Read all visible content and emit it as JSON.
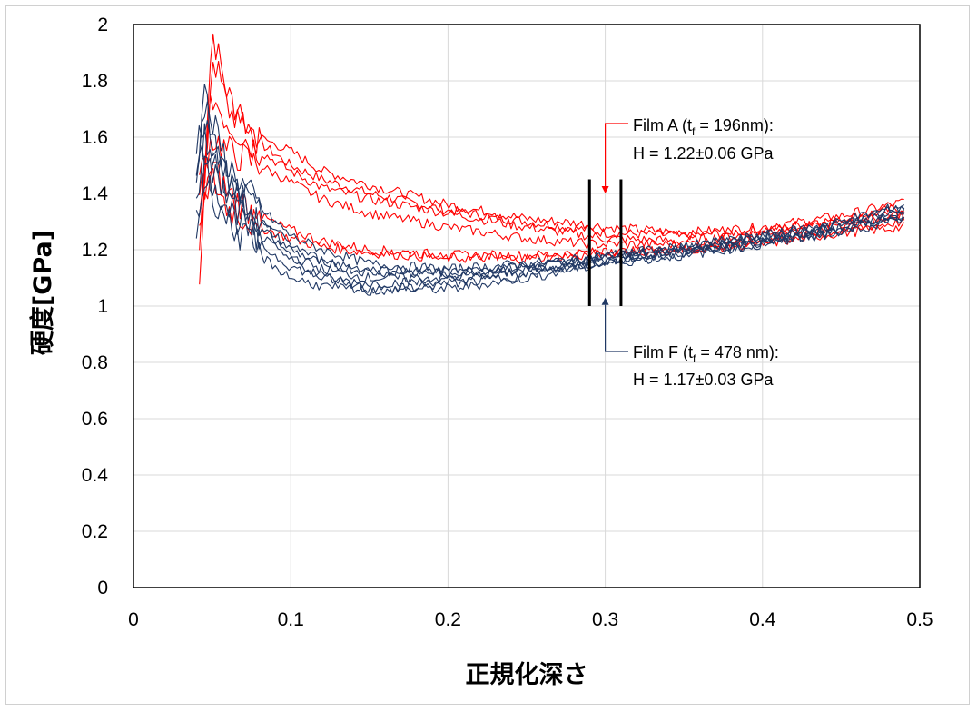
{
  "chart_data": {
    "type": "line",
    "xlabel": "正規化深さ",
    "ylabel": "硬度[GPa]",
    "xlim": [
      0,
      0.5
    ],
    "ylim": [
      0,
      2
    ],
    "xticks": [
      "0",
      "0.1",
      "0.2",
      "0.3",
      "0.4",
      "0.5"
    ],
    "yticks": [
      "0",
      "0.2",
      "0.4",
      "0.6",
      "0.8",
      "1",
      "1.2",
      "1.4",
      "1.6",
      "1.8",
      "2"
    ],
    "grid": true,
    "legend": "none",
    "marker_lines_x": [
      0.29,
      0.31
    ],
    "marker_lines_y": [
      1.0,
      1.45
    ],
    "series": [
      {
        "group": "Film A",
        "color": "#ff0000",
        "curves": [
          {
            "x": [
              0.042,
              0.05,
              0.06,
              0.08,
              0.1,
              0.12,
              0.15,
              0.2,
              0.25,
              0.29,
              0.3,
              0.35,
              0.4,
              0.45,
              0.49
            ],
            "y": [
              1.2,
              1.98,
              1.75,
              1.58,
              1.5,
              1.45,
              1.4,
              1.34,
              1.3,
              1.27,
              1.26,
              1.25,
              1.27,
              1.31,
              1.35
            ]
          },
          {
            "x": [
              0.042,
              0.05,
              0.06,
              0.08,
              0.1,
              0.12,
              0.15,
              0.2,
              0.25,
              0.29,
              0.3,
              0.35,
              0.4,
              0.45,
              0.49
            ],
            "y": [
              1.05,
              1.9,
              1.7,
              1.6,
              1.55,
              1.48,
              1.43,
              1.36,
              1.31,
              1.29,
              1.28,
              1.26,
              1.28,
              1.32,
              1.37
            ]
          },
          {
            "x": [
              0.042,
              0.05,
              0.06,
              0.08,
              0.1,
              0.12,
              0.15,
              0.2,
              0.25,
              0.29,
              0.3,
              0.35,
              0.4,
              0.45,
              0.49
            ],
            "y": [
              1.3,
              1.75,
              1.65,
              1.55,
              1.48,
              1.42,
              1.38,
              1.33,
              1.28,
              1.25,
              1.24,
              1.23,
              1.26,
              1.3,
              1.32
            ]
          },
          {
            "x": [
              0.042,
              0.05,
              0.06,
              0.08,
              0.1,
              0.12,
              0.15,
              0.2,
              0.25,
              0.29,
              0.3,
              0.35,
              0.4,
              0.45,
              0.49
            ],
            "y": [
              1.45,
              1.6,
              1.55,
              1.5,
              1.44,
              1.38,
              1.33,
              1.28,
              1.24,
              1.22,
              1.22,
              1.22,
              1.25,
              1.29,
              1.33
            ]
          },
          {
            "x": [
              0.042,
              0.05,
              0.06,
              0.08,
              0.1,
              0.12,
              0.15,
              0.2,
              0.25,
              0.29,
              0.3,
              0.35,
              0.4,
              0.45,
              0.49
            ],
            "y": [
              1.25,
              1.5,
              1.4,
              1.32,
              1.27,
              1.23,
              1.2,
              1.18,
              1.18,
              1.19,
              1.19,
              1.2,
              1.23,
              1.27,
              1.3
            ]
          },
          {
            "x": [
              0.042,
              0.05,
              0.06,
              0.08,
              0.1,
              0.12,
              0.15,
              0.2,
              0.25,
              0.29,
              0.3,
              0.35,
              0.4,
              0.45,
              0.49
            ],
            "y": [
              1.4,
              1.45,
              1.35,
              1.28,
              1.24,
              1.21,
              1.19,
              1.17,
              1.17,
              1.18,
              1.19,
              1.2,
              1.22,
              1.26,
              1.28
            ]
          }
        ]
      },
      {
        "group": "Film F",
        "color": "#203864",
        "curves": [
          {
            "x": [
              0.04,
              0.045,
              0.05,
              0.06,
              0.08,
              0.1,
              0.12,
              0.15,
              0.2,
              0.25,
              0.29,
              0.3,
              0.35,
              0.4,
              0.45,
              0.49
            ],
            "y": [
              1.4,
              1.78,
              1.6,
              1.45,
              1.3,
              1.2,
              1.15,
              1.12,
              1.12,
              1.14,
              1.16,
              1.17,
              1.2,
              1.24,
              1.29,
              1.34
            ]
          },
          {
            "x": [
              0.04,
              0.045,
              0.05,
              0.06,
              0.08,
              0.1,
              0.12,
              0.15,
              0.2,
              0.25,
              0.29,
              0.3,
              0.35,
              0.4,
              0.45,
              0.49
            ],
            "y": [
              1.5,
              1.7,
              1.65,
              1.5,
              1.35,
              1.25,
              1.2,
              1.15,
              1.13,
              1.15,
              1.17,
              1.18,
              1.21,
              1.25,
              1.3,
              1.36
            ]
          },
          {
            "x": [
              0.04,
              0.045,
              0.05,
              0.06,
              0.08,
              0.1,
              0.12,
              0.15,
              0.2,
              0.25,
              0.29,
              0.3,
              0.35,
              0.4,
              0.45,
              0.49
            ],
            "y": [
              1.35,
              1.6,
              1.55,
              1.42,
              1.28,
              1.18,
              1.13,
              1.1,
              1.1,
              1.13,
              1.16,
              1.17,
              1.2,
              1.23,
              1.28,
              1.33
            ]
          },
          {
            "x": [
              0.04,
              0.045,
              0.05,
              0.06,
              0.08,
              0.1,
              0.12,
              0.15,
              0.2,
              0.25,
              0.29,
              0.3,
              0.35,
              0.4,
              0.45,
              0.49
            ],
            "y": [
              1.3,
              1.5,
              1.45,
              1.35,
              1.22,
              1.14,
              1.1,
              1.08,
              1.09,
              1.12,
              1.15,
              1.16,
              1.19,
              1.23,
              1.27,
              1.32
            ]
          },
          {
            "x": [
              0.04,
              0.045,
              0.05,
              0.06,
              0.08,
              0.1,
              0.12,
              0.15,
              0.2,
              0.25,
              0.29,
              0.3,
              0.35,
              0.4,
              0.45,
              0.49
            ],
            "y": [
              1.45,
              1.55,
              1.48,
              1.38,
              1.25,
              1.16,
              1.11,
              1.06,
              1.06,
              1.1,
              1.14,
              1.15,
              1.18,
              1.22,
              1.27,
              1.33
            ]
          },
          {
            "x": [
              0.04,
              0.045,
              0.05,
              0.06,
              0.08,
              0.1,
              0.12,
              0.15,
              0.2,
              0.25,
              0.29,
              0.3,
              0.35,
              0.4,
              0.45,
              0.49
            ],
            "y": [
              1.55,
              1.65,
              1.58,
              1.45,
              1.32,
              1.22,
              1.16,
              1.13,
              1.12,
              1.14,
              1.17,
              1.18,
              1.21,
              1.25,
              1.29,
              1.35
            ]
          },
          {
            "x": [
              0.04,
              0.045,
              0.05,
              0.06,
              0.08,
              0.1,
              0.12,
              0.15,
              0.2,
              0.25,
              0.29,
              0.3,
              0.35,
              0.4,
              0.45,
              0.49
            ],
            "y": [
              1.25,
              1.45,
              1.4,
              1.3,
              1.18,
              1.1,
              1.07,
              1.05,
              1.08,
              1.11,
              1.15,
              1.16,
              1.19,
              1.22,
              1.26,
              1.31
            ]
          }
        ]
      }
    ],
    "annotations": [
      {
        "id": "film_a",
        "line1_pre": "Film A (t",
        "line1_sub": "f",
        "line1_post": " = 196nm):",
        "line2": "H = 1.22±0.06  GPa",
        "color": "#ff0000",
        "arrow_x": 0.3,
        "arrow_y": 1.4
      },
      {
        "id": "film_f",
        "line1_pre": "Film F (t",
        "line1_sub": "f",
        "line1_post": " = 478 nm):",
        "line2": "H = 1.17±0.03  GPa",
        "color": "#203864",
        "arrow_x": 0.3,
        "arrow_y": 1.03
      }
    ]
  }
}
